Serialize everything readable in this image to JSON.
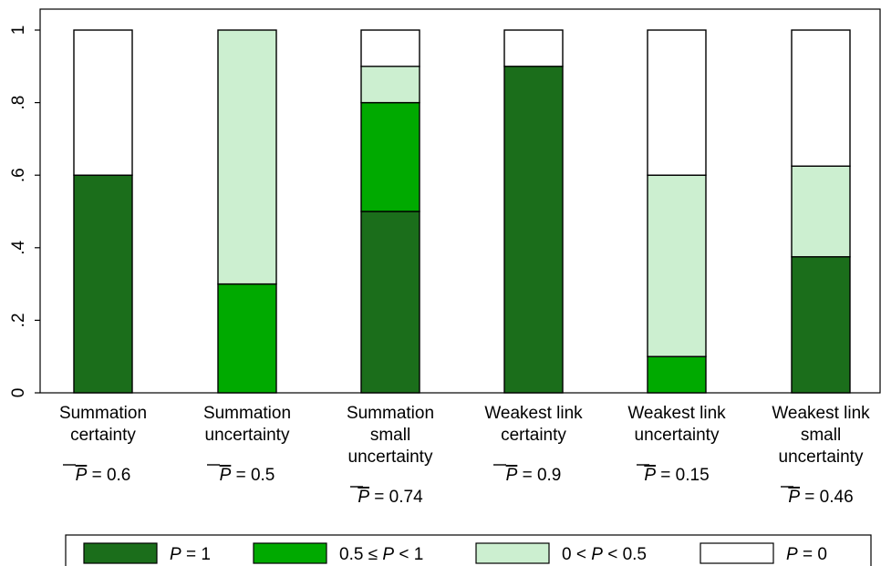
{
  "chart_data": {
    "type": "bar",
    "stacked": true,
    "normalized": true,
    "ylim": [
      0,
      1
    ],
    "yticks": [
      0,
      0.2,
      0.4,
      0.6,
      0.8,
      1
    ],
    "ytick_labels": [
      "0",
      ".2",
      ".4",
      ".6",
      ".8",
      "1"
    ],
    "grid": false,
    "legend_position": "bottom",
    "categories": [
      "Summation certainty",
      "Summation uncertainty",
      "Summation small uncertainty",
      "Weakest link certainty",
      "Weakest link uncertainty",
      "Weakest link small uncertainty"
    ],
    "category_label_lines": [
      [
        "Summation",
        "certainty"
      ],
      [
        "Summation",
        "uncertainty"
      ],
      [
        "Summation",
        "small",
        "uncertainty"
      ],
      [
        "Weakest link",
        "certainty"
      ],
      [
        "Weakest link",
        "uncertainty"
      ],
      [
        "Weakest link",
        "small",
        "uncertainty"
      ]
    ],
    "pbar_values": [
      "0.6",
      "0.5",
      "0.74",
      "0.9",
      "0.15",
      "0.46"
    ],
    "pbar_symbol": "P",
    "series": [
      {
        "name": "P = 1",
        "color": "#1b6e1b",
        "values": [
          0.6,
          0,
          0.5,
          0.9,
          0,
          0.375
        ]
      },
      {
        "name": "0.5 ≤ P < 1",
        "color": "#00aa00",
        "values": [
          0,
          0.3,
          0.3,
          0,
          0.1,
          0
        ]
      },
      {
        "name": "0 < P < 0.5",
        "color": "#ccefd0",
        "values": [
          0,
          0.7,
          0.1,
          0,
          0.5,
          0.25
        ]
      },
      {
        "name": "P = 0",
        "color": "#ffffff",
        "values": [
          0.4,
          0,
          0.1,
          0.1,
          0.4,
          0.375
        ]
      }
    ],
    "legend": [
      {
        "italic": "P",
        "rest": " = 1",
        "prefix": ""
      },
      {
        "italic": "P",
        "rest": " < 1",
        "prefix": "0.5 ≤ "
      },
      {
        "italic": "P",
        "rest": " < 0.5",
        "prefix": "0 < "
      },
      {
        "italic": "P",
        "rest": " = 0",
        "prefix": ""
      }
    ]
  }
}
